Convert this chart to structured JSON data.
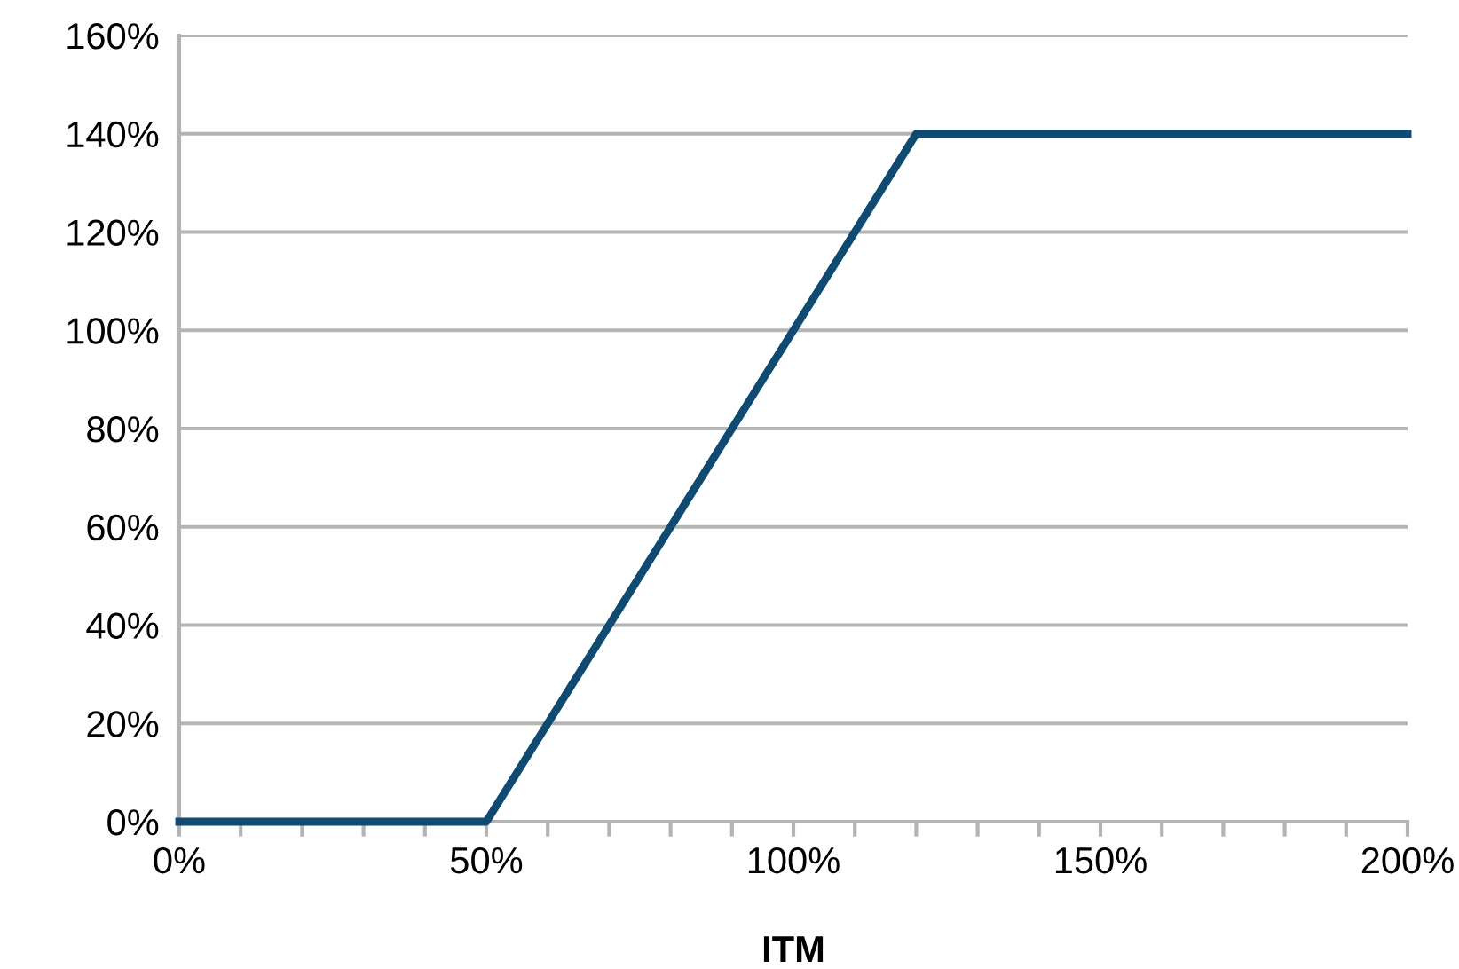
{
  "chart_data": {
    "type": "line",
    "xlabel": "ITM",
    "x": [
      0,
      10,
      20,
      30,
      40,
      50,
      60,
      70,
      80,
      90,
      100,
      110,
      120,
      130,
      140,
      150,
      160,
      170,
      180,
      190,
      200
    ],
    "series": [
      {
        "color": "#0e4a72",
        "values": [
          0,
          0,
          0,
          0,
          0,
          0,
          20,
          40,
          60,
          80,
          100,
          120,
          140,
          140,
          140,
          140,
          140,
          140,
          140,
          140,
          140
        ]
      }
    ],
    "xlim": [
      0,
      200
    ],
    "xticks": [
      {
        "value": 0,
        "label": "0%"
      },
      {
        "value": 10,
        "label": null
      },
      {
        "value": 20,
        "label": null
      },
      {
        "value": 30,
        "label": null
      },
      {
        "value": 40,
        "label": null
      },
      {
        "value": 50,
        "label": "50%"
      },
      {
        "value": 60,
        "label": null
      },
      {
        "value": 70,
        "label": null
      },
      {
        "value": 80,
        "label": null
      },
      {
        "value": 90,
        "label": null
      },
      {
        "value": 100,
        "label": "100%"
      },
      {
        "value": 110,
        "label": null
      },
      {
        "value": 120,
        "label": null
      },
      {
        "value": 130,
        "label": null
      },
      {
        "value": 140,
        "label": null
      },
      {
        "value": 150,
        "label": "150%"
      },
      {
        "value": 160,
        "label": null
      },
      {
        "value": 170,
        "label": null
      },
      {
        "value": 180,
        "label": null
      },
      {
        "value": 190,
        "label": null
      },
      {
        "value": 200,
        "label": "200%"
      }
    ],
    "ylim": [
      0,
      160
    ],
    "yticks": [
      {
        "value": 0,
        "label": "0%"
      },
      {
        "value": 20,
        "label": "20%"
      },
      {
        "value": 40,
        "label": "40%"
      },
      {
        "value": 60,
        "label": "60%"
      },
      {
        "value": 80,
        "label": "80%"
      },
      {
        "value": 100,
        "label": "100%"
      },
      {
        "value": 120,
        "label": "120%"
      },
      {
        "value": 140,
        "label": "140%"
      },
      {
        "value": 160,
        "label": "160%"
      }
    ],
    "grid": "y",
    "marker": "none",
    "line_style": "solid"
  }
}
